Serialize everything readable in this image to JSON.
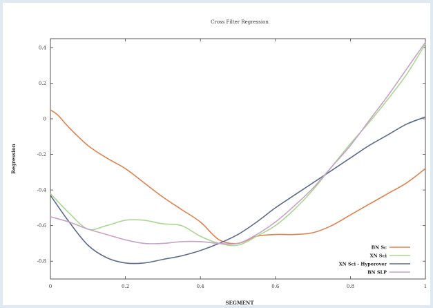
{
  "chart_data": {
    "type": "line",
    "title": "Cross Filter Regression",
    "xlabel": "SEGMENT",
    "ylabel": "Regression",
    "xlim": [
      0,
      1
    ],
    "ylim": [
      -0.9,
      0.45
    ],
    "x_ticks": [
      0,
      0.2,
      0.4,
      0.6,
      0.8,
      1
    ],
    "x_tick_labels": [
      "0",
      "0.2",
      "0.4",
      "0.6",
      "0.8",
      "1"
    ],
    "y_ticks": [
      0.4,
      0.2,
      0,
      -0.2,
      -0.4,
      -0.6,
      -0.8
    ],
    "y_tick_labels": [
      "0.4",
      "0.2",
      "0",
      "-0.2",
      "-0.4",
      "-0.6",
      "-0.8"
    ],
    "grid": false,
    "legend_position": "bottom-right",
    "series": [
      {
        "name": "BN Sc",
        "color": "#e0804a",
        "x": [
          0,
          0.02,
          0.05,
          0.1,
          0.15,
          0.2,
          0.25,
          0.3,
          0.35,
          0.4,
          0.45,
          0.5,
          0.55,
          0.6,
          0.65,
          0.7,
          0.75,
          0.8,
          0.85,
          0.9,
          0.95,
          1
        ],
        "y": [
          0.05,
          0.02,
          -0.05,
          -0.15,
          -0.22,
          -0.28,
          -0.36,
          -0.44,
          -0.51,
          -0.58,
          -0.68,
          -0.7,
          -0.66,
          -0.65,
          -0.65,
          -0.64,
          -0.6,
          -0.54,
          -0.48,
          -0.42,
          -0.36,
          -0.28
        ]
      },
      {
        "name": "XN Sci",
        "color": "#a8d890",
        "x": [
          0,
          0.05,
          0.1,
          0.15,
          0.2,
          0.25,
          0.3,
          0.35,
          0.4,
          0.45,
          0.5,
          0.55,
          0.6,
          0.65,
          0.7,
          0.75,
          0.8,
          0.85,
          0.9,
          0.95,
          1
        ],
        "y": [
          -0.42,
          -0.53,
          -0.62,
          -0.6,
          -0.57,
          -0.57,
          -0.59,
          -0.6,
          -0.66,
          -0.7,
          -0.71,
          -0.66,
          -0.6,
          -0.51,
          -0.4,
          -0.27,
          -0.14,
          -0.02,
          0.11,
          0.25,
          0.42
        ]
      },
      {
        "name": "XN Sci - Hyperover",
        "color": "#5a6a8a",
        "x": [
          0,
          0.05,
          0.1,
          0.15,
          0.2,
          0.25,
          0.3,
          0.35,
          0.4,
          0.45,
          0.5,
          0.55,
          0.6,
          0.65,
          0.7,
          0.75,
          0.8,
          0.85,
          0.9,
          0.95,
          1
        ],
        "y": [
          -0.43,
          -0.58,
          -0.71,
          -0.78,
          -0.81,
          -0.81,
          -0.79,
          -0.77,
          -0.74,
          -0.7,
          -0.65,
          -0.58,
          -0.5,
          -0.43,
          -0.36,
          -0.29,
          -0.22,
          -0.15,
          -0.09,
          -0.03,
          0.01
        ]
      },
      {
        "name": "BN SLP",
        "color": "#c8a0c8",
        "x": [
          0,
          0.05,
          0.1,
          0.15,
          0.2,
          0.25,
          0.3,
          0.35,
          0.4,
          0.45,
          0.5,
          0.55,
          0.6,
          0.65,
          0.7,
          0.75,
          0.8,
          0.85,
          0.9,
          0.95,
          1
        ],
        "y": [
          -0.55,
          -0.58,
          -0.62,
          -0.65,
          -0.68,
          -0.7,
          -0.7,
          -0.69,
          -0.69,
          -0.7,
          -0.7,
          -0.65,
          -0.58,
          -0.49,
          -0.39,
          -0.27,
          -0.15,
          -0.01,
          0.13,
          0.28,
          0.43
        ]
      }
    ]
  }
}
